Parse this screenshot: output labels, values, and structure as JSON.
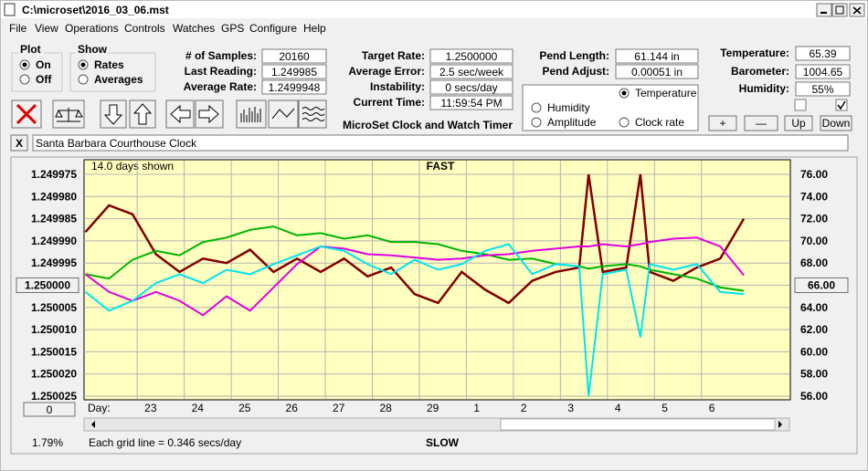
{
  "window": {
    "title": "C:\\microset\\2016_03_06.mst"
  },
  "menu": [
    "File",
    "View",
    "Operations",
    "Controls",
    "Watches",
    "GPS",
    "Configure",
    "Help"
  ],
  "plot_group": {
    "title": "Plot",
    "options": [
      "On",
      "Off"
    ],
    "selected": 0
  },
  "show_group": {
    "title": "Show",
    "options": [
      "Rates",
      "Averages"
    ],
    "selected": 0
  },
  "fields": [
    {
      "label": "# of Samples:",
      "value": "20160"
    },
    {
      "label": "Last Reading:",
      "value": "1.249985"
    },
    {
      "label": "Average Rate:",
      "value": "1.2499948"
    },
    {
      "label": "Target Rate:",
      "value": "1.2500000"
    },
    {
      "label": "Average Error:",
      "value": "2.5 sec/week"
    },
    {
      "label": "Instability:",
      "value": "0 secs/day"
    },
    {
      "label": "Current Time:",
      "value": "11:59:54 PM"
    },
    {
      "label": "Pend Length:",
      "value": "61.144 in"
    },
    {
      "label": "Pend Adjust:",
      "value": "0.00051 in"
    },
    {
      "label": "Temperature:",
      "value": "65.39"
    },
    {
      "label": "Barometer:",
      "value": "1004.65"
    },
    {
      "label": "Humidity:",
      "value": "55%"
    }
  ],
  "app_title": "MicroSet Clock and Watch Timer",
  "buttons": [
    "+",
    "—",
    "Up",
    "Down"
  ],
  "clock": {
    "close": "X",
    "name": "Santa Barbara Courthouse Clock"
  },
  "chart_data": {
    "type": "line",
    "range_note": "14.0 days shown",
    "top_label": "FAST",
    "bottom_label": "SLOW",
    "x_label": "Day:",
    "grid_note": "Each grid line = 0.346 secs/day",
    "status": "1.79%",
    "scroll_value": "0",
    "selected_series": 1,
    "grid": true,
    "xlim": [
      -1.13,
      13.87
    ],
    "xticks": [
      {
        "value": 0,
        "label": "23"
      },
      {
        "value": 1,
        "label": "24"
      },
      {
        "value": 2,
        "label": "25"
      },
      {
        "value": 3,
        "label": "26"
      },
      {
        "value": 4,
        "label": "27"
      },
      {
        "value": 5,
        "label": "28"
      },
      {
        "value": 6,
        "label": "29"
      },
      {
        "value": 7,
        "label": "1"
      },
      {
        "value": 8,
        "label": "2"
      },
      {
        "value": 9,
        "label": "3"
      },
      {
        "value": 10,
        "label": "4"
      },
      {
        "value": 11,
        "label": "5"
      },
      {
        "value": 12,
        "label": "6"
      }
    ],
    "ylim": [
      1.250025,
      1.249975
    ],
    "yticks": [
      1.249975,
      {
        "value": 1.24998,
        "label": "1.249980"
      },
      1.249985,
      {
        "value": 1.24999,
        "label": "1.249990"
      },
      1.249995,
      {
        "value": 1.25,
        "label": "1.250000"
      },
      1.250005,
      {
        "value": 1.25001,
        "label": "1.250010"
      },
      1.250015,
      {
        "value": 1.25002,
        "label": "1.250020"
      },
      1.250025
    ],
    "y2lim": [
      56,
      76
    ],
    "y2ticks": [
      {
        "value": 76,
        "label": "76.00"
      },
      {
        "value": 74,
        "label": "74.00"
      },
      {
        "value": 72,
        "label": "72.00"
      },
      {
        "value": 70,
        "label": "70.00"
      },
      {
        "value": 68,
        "label": "68.00"
      },
      {
        "value": 66,
        "label": "66.00"
      },
      {
        "value": 64,
        "label": "64.00"
      },
      {
        "value": 62,
        "label": "62.00"
      },
      {
        "value": 60,
        "label": "60.00"
      },
      {
        "value": 58,
        "label": "58.00"
      },
      {
        "value": 56,
        "label": "56.00"
      }
    ],
    "x": [
      -1.1,
      -0.6,
      -0.1,
      0.4,
      0.9,
      1.4,
      1.9,
      2.4,
      2.9,
      3.4,
      3.9,
      4.4,
      4.9,
      5.4,
      5.9,
      6.4,
      6.9,
      7.4,
      7.9,
      8.4,
      8.9,
      9.4,
      9.6,
      9.9,
      10.4,
      10.7,
      10.9,
      11.4,
      11.9,
      12.4,
      12.9
    ],
    "series": [
      {
        "name": "Clock rate",
        "color": "#800000",
        "axis": "y",
        "values": [
          1.249988,
          1.249982,
          1.249984,
          1.249993,
          1.249997,
          1.249994,
          1.249995,
          1.249992,
          1.249997,
          1.249994,
          1.249997,
          1.249994,
          1.249998,
          1.249996,
          1.250002,
          1.250004,
          1.249997,
          1.250001,
          1.250004,
          1.249999,
          1.249997,
          1.249996,
          1.249975,
          1.249997,
          1.249996,
          1.249975,
          1.249997,
          1.249999,
          1.249996,
          1.249994,
          1.249985
        ]
      },
      {
        "name": "Temperature",
        "color": "#00b400",
        "axis": "y2",
        "values": [
          67.0,
          66.6,
          68.3,
          69.1,
          68.7,
          69.9,
          70.3,
          71.0,
          71.3,
          70.5,
          70.7,
          70.2,
          70.5,
          69.9,
          69.9,
          69.7,
          69.1,
          68.8,
          68.3,
          68.4,
          67.9,
          67.7,
          67.5,
          67.7,
          67.9,
          67.7,
          67.4,
          67.0,
          66.6,
          65.8,
          65.5
        ]
      },
      {
        "name": "Humidity",
        "color": "#e000e0",
        "axis": "y2",
        "values": [
          67.0,
          65.4,
          64.6,
          65.4,
          64.6,
          63.3,
          65.0,
          63.7,
          65.8,
          67.9,
          69.5,
          69.3,
          68.8,
          68.7,
          68.5,
          68.3,
          68.4,
          68.7,
          68.8,
          69.1,
          69.3,
          69.5,
          69.5,
          69.7,
          69.5,
          69.7,
          69.9,
          70.2,
          70.3,
          69.5,
          66.9
        ]
      },
      {
        "name": "Amplitude",
        "color": "#00e4f0",
        "axis": "y2",
        "values": [
          65.4,
          63.7,
          64.6,
          66.2,
          67.0,
          66.2,
          67.4,
          67.0,
          67.9,
          68.7,
          69.5,
          69.1,
          67.9,
          67.0,
          68.3,
          67.4,
          67.9,
          69.1,
          69.7,
          67.0,
          67.9,
          67.7,
          56.0,
          67.0,
          67.4,
          61.3,
          67.9,
          67.4,
          67.9,
          65.4,
          65.2
        ]
      }
    ]
  }
}
